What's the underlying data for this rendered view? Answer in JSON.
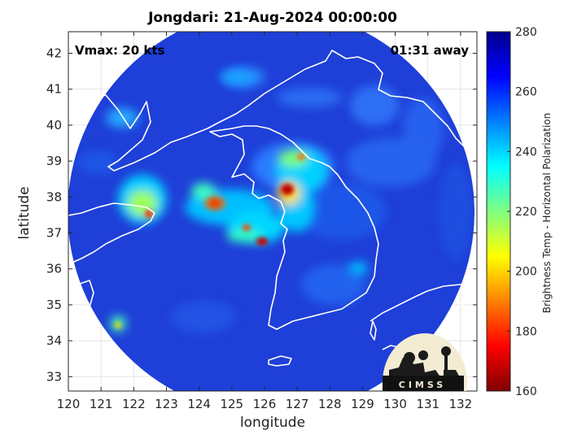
{
  "title": "Jongdari: 21-Aug-2024 00:00:00",
  "vmax_label": "Vmax: 20 kts",
  "time_away": "01:31 away",
  "xlabel": "longitude",
  "ylabel": "latitude",
  "colorbar": {
    "label": "Brightness Temp - Horizontal Polarization",
    "range": [
      160,
      280
    ],
    "ticks": [
      "160",
      "180",
      "200",
      "220",
      "240",
      "260",
      "280"
    ],
    "colormap": [
      "#7f0000",
      "#ff0000",
      "#ff8000",
      "#ffff00",
      "#80ff80",
      "#00ffff",
      "#0080ff",
      "#0000ff",
      "#00008f"
    ]
  },
  "map": {
    "lon_range": [
      120,
      132.5
    ],
    "lat_range": [
      32.6,
      42.6
    ],
    "x_ticks": [
      "120",
      "121",
      "122",
      "123",
      "124",
      "125",
      "126",
      "127",
      "128",
      "129",
      "130",
      "131",
      "132"
    ],
    "y_ticks": [
      "33",
      "34",
      "35",
      "36",
      "37",
      "38",
      "39",
      "40",
      "41",
      "42"
    ],
    "grid": true,
    "background_color": "#1e3fd8"
  },
  "logo": {
    "text": "CIMSS"
  }
}
